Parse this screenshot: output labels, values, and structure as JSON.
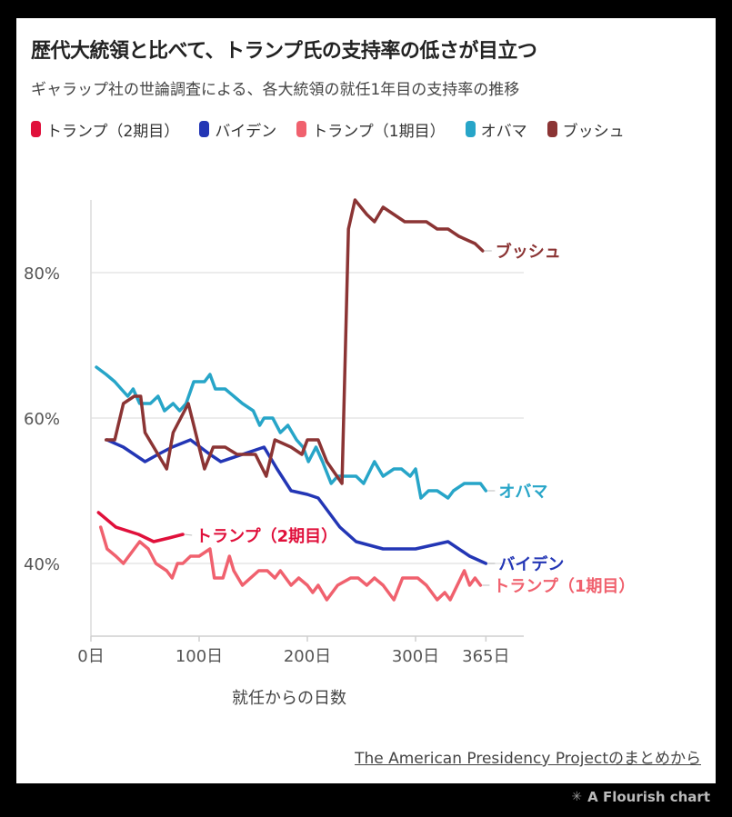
{
  "title": "歴代大統領と比べて、トランプ氏の支持率の低さが目立つ",
  "subtitle": "ギャラップ社の世論調査による、各大統領の就任1年目の支持率の推移",
  "source": "The American Presidency Projectのまとめから",
  "badge": "A Flourish chart",
  "chart_data": {
    "type": "line",
    "xlabel": "就任からの日数",
    "ylabel": "",
    "xlim": [
      0,
      400
    ],
    "ylim": [
      30,
      90
    ],
    "x_ticks": [
      {
        "value": 0,
        "label": "0日"
      },
      {
        "value": 100,
        "label": "100日"
      },
      {
        "value": 200,
        "label": "200日"
      },
      {
        "value": 300,
        "label": "300日"
      },
      {
        "value": 365,
        "label": "365日"
      }
    ],
    "y_ticks": [
      {
        "value": 40,
        "label": "40%"
      },
      {
        "value": 60,
        "label": "60%"
      },
      {
        "value": 80,
        "label": "80%"
      }
    ],
    "grid": true,
    "legend_position": "top-left",
    "series": [
      {
        "name": "トランプ（2期目）",
        "color": "#e0103b",
        "end_label": "トランプ（2期目）",
        "points": [
          [
            7,
            47
          ],
          [
            23,
            45
          ],
          [
            44,
            44
          ],
          [
            58,
            43
          ],
          [
            72,
            43.5
          ],
          [
            85,
            44
          ]
        ]
      },
      {
        "name": "バイデン",
        "color": "#2336b5",
        "end_label": "バイデン",
        "points": [
          [
            15,
            57
          ],
          [
            30,
            56
          ],
          [
            50,
            54
          ],
          [
            62,
            55
          ],
          [
            75,
            56
          ],
          [
            92,
            57
          ],
          [
            110,
            55
          ],
          [
            120,
            54
          ],
          [
            140,
            55
          ],
          [
            160,
            56
          ],
          [
            172,
            53
          ],
          [
            185,
            50
          ],
          [
            200,
            49.5
          ],
          [
            210,
            49
          ],
          [
            230,
            45
          ],
          [
            245,
            43
          ],
          [
            270,
            42
          ],
          [
            300,
            42
          ],
          [
            330,
            43
          ],
          [
            350,
            41
          ],
          [
            365,
            40
          ]
        ]
      },
      {
        "name": "トランプ（1期目）",
        "color": "#f0616e",
        "end_label": "トランプ（1期目）",
        "points": [
          [
            9,
            45
          ],
          [
            15,
            42
          ],
          [
            23,
            41
          ],
          [
            30,
            40
          ],
          [
            40,
            42
          ],
          [
            45,
            43
          ],
          [
            53,
            42
          ],
          [
            60,
            40
          ],
          [
            70,
            39
          ],
          [
            75,
            38
          ],
          [
            80,
            40
          ],
          [
            85,
            40
          ],
          [
            92,
            41
          ],
          [
            100,
            41
          ],
          [
            110,
            42
          ],
          [
            114,
            38
          ],
          [
            122,
            38
          ],
          [
            128,
            41
          ],
          [
            132,
            39
          ],
          [
            140,
            37
          ],
          [
            155,
            39
          ],
          [
            163,
            39
          ],
          [
            170,
            38
          ],
          [
            175,
            39
          ],
          [
            185,
            37
          ],
          [
            192,
            38
          ],
          [
            200,
            37
          ],
          [
            205,
            36
          ],
          [
            210,
            37
          ],
          [
            218,
            35
          ],
          [
            228,
            37
          ],
          [
            240,
            38
          ],
          [
            247,
            38
          ],
          [
            255,
            37
          ],
          [
            262,
            38
          ],
          [
            270,
            37
          ],
          [
            280,
            35
          ],
          [
            288,
            38
          ],
          [
            302,
            38
          ],
          [
            310,
            37
          ],
          [
            320,
            35
          ],
          [
            327,
            36
          ],
          [
            332,
            35
          ],
          [
            345,
            39
          ],
          [
            350,
            37
          ],
          [
            355,
            38
          ],
          [
            360,
            37
          ]
        ]
      },
      {
        "name": "オバマ",
        "color": "#27a5c8",
        "end_label": "オバマ",
        "points": [
          [
            5,
            67
          ],
          [
            14,
            66
          ],
          [
            22,
            65
          ],
          [
            28,
            64
          ],
          [
            34,
            63
          ],
          [
            39,
            64
          ],
          [
            45,
            62
          ],
          [
            55,
            62
          ],
          [
            62,
            63
          ],
          [
            68,
            61
          ],
          [
            76,
            62
          ],
          [
            82,
            61
          ],
          [
            88,
            62
          ],
          [
            95,
            65
          ],
          [
            105,
            65
          ],
          [
            110,
            66
          ],
          [
            115,
            64
          ],
          [
            124,
            64
          ],
          [
            132,
            63
          ],
          [
            140,
            62
          ],
          [
            150,
            61
          ],
          [
            156,
            59
          ],
          [
            160,
            60
          ],
          [
            168,
            60
          ],
          [
            175,
            58
          ],
          [
            182,
            59
          ],
          [
            190,
            57
          ],
          [
            196,
            56
          ],
          [
            201,
            54
          ],
          [
            208,
            56
          ],
          [
            214,
            54
          ],
          [
            222,
            51
          ],
          [
            228,
            52
          ],
          [
            235,
            52
          ],
          [
            245,
            52
          ],
          [
            252,
            51
          ],
          [
            262,
            54
          ],
          [
            270,
            52
          ],
          [
            280,
            53
          ],
          [
            287,
            53
          ],
          [
            295,
            52
          ],
          [
            300,
            53
          ],
          [
            305,
            49
          ],
          [
            312,
            50
          ],
          [
            320,
            50
          ],
          [
            330,
            49
          ],
          [
            335,
            50
          ],
          [
            345,
            51
          ],
          [
            352,
            51
          ],
          [
            360,
            51
          ],
          [
            365,
            50
          ]
        ]
      },
      {
        "name": "ブッシュ",
        "color": "#8b3434",
        "end_label": "ブッシュ",
        "points": [
          [
            14,
            57
          ],
          [
            22,
            57
          ],
          [
            30,
            62
          ],
          [
            40,
            63
          ],
          [
            46,
            63
          ],
          [
            50,
            58
          ],
          [
            62,
            55
          ],
          [
            70,
            53
          ],
          [
            76,
            58
          ],
          [
            90,
            62
          ],
          [
            95,
            59
          ],
          [
            105,
            53
          ],
          [
            113,
            56
          ],
          [
            124,
            56
          ],
          [
            135,
            55
          ],
          [
            145,
            55
          ],
          [
            152,
            55
          ],
          [
            162,
            52
          ],
          [
            170,
            57
          ],
          [
            185,
            56
          ],
          [
            195,
            55
          ],
          [
            200,
            57
          ],
          [
            210,
            57
          ],
          [
            218,
            54
          ],
          [
            232,
            51
          ],
          [
            238,
            86
          ],
          [
            244,
            90
          ],
          [
            255,
            88
          ],
          [
            262,
            87
          ],
          [
            270,
            89
          ],
          [
            280,
            88
          ],
          [
            290,
            87
          ],
          [
            300,
            87
          ],
          [
            310,
            87
          ],
          [
            320,
            86
          ],
          [
            330,
            86
          ],
          [
            340,
            85
          ],
          [
            355,
            84
          ],
          [
            362,
            83
          ]
        ]
      }
    ]
  }
}
